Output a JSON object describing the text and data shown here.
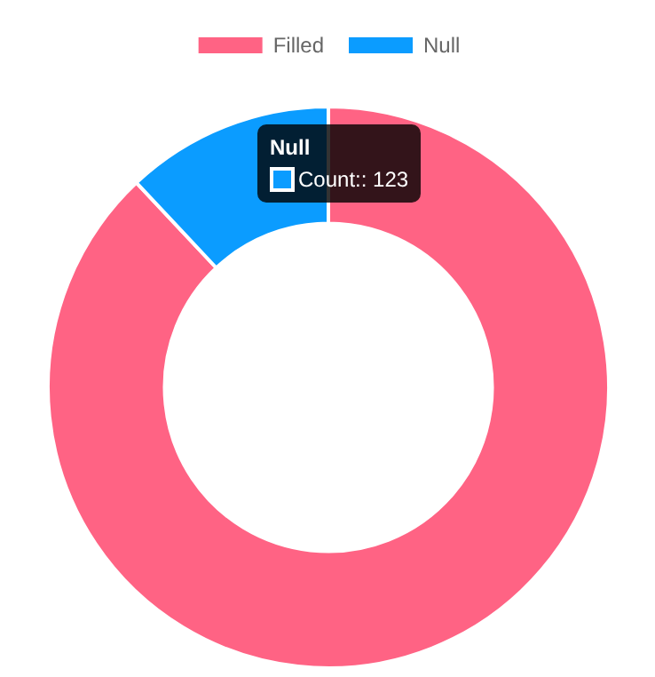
{
  "chart_data": {
    "type": "donut",
    "categories": [
      "Filled",
      "Null"
    ],
    "values": [
      88,
      12
    ],
    "colors": [
      "#ff6384",
      "#0b9cff"
    ],
    "legend": "top",
    "annotations": [
      "Null",
      "Count:: 123"
    ]
  }
}
